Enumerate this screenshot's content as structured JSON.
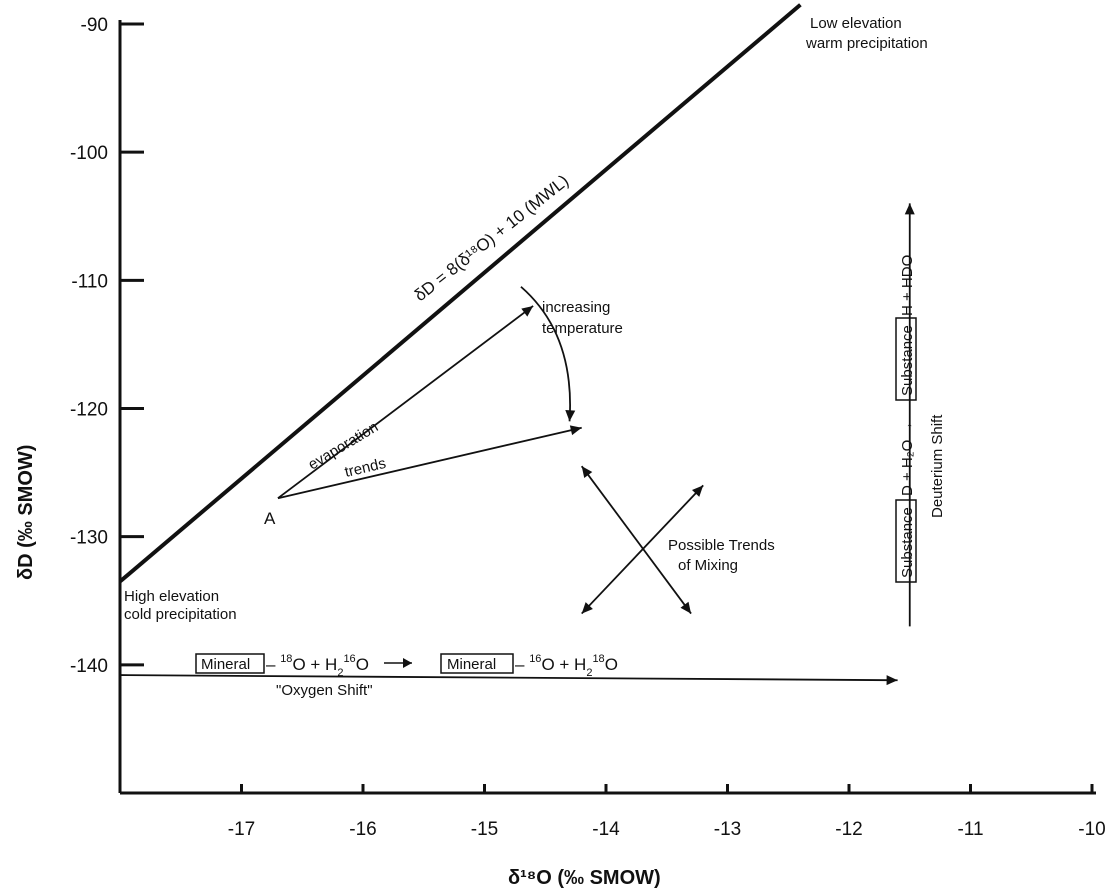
{
  "chart_data": {
    "type": "line",
    "xlabel": "δ¹⁸O (‰ SMOW)",
    "ylabel": "δD (‰ SMOW)",
    "xlim": [
      -18,
      -10
    ],
    "ylim": [
      -150,
      -90
    ],
    "x_ticks": [
      "-17",
      "-16",
      "-15",
      "-14",
      "-13",
      "-12",
      "-11",
      "-10"
    ],
    "y_ticks": [
      "-90",
      "-100",
      "-110",
      "-120",
      "-130",
      "-140"
    ],
    "x_tick_values": [
      -17,
      -16,
      -15,
      -14,
      -13,
      -12,
      -11,
      -10
    ],
    "y_tick_values": [
      -90,
      -100,
      -110,
      -120,
      -130,
      -140
    ],
    "series": [
      {
        "name": "δD = 8(δ¹⁸O) + 10 (MWL)",
        "x": [
          -18,
          -12.4
        ],
        "y": [
          -133.5,
          -88.5
        ]
      }
    ],
    "arrows": {
      "evaporation_upper": {
        "from": [
          -16.7,
          -127
        ],
        "to": [
          -14.6,
          -112
        ]
      },
      "evaporation_lower": {
        "from": [
          -16.7,
          -127
        ],
        "to": [
          -14.2,
          -121.5
        ]
      },
      "temperature_curve": {
        "from": [
          -14.7,
          -110.5
        ],
        "to": [
          -14.3,
          -121
        ]
      },
      "mixing_1": {
        "from": [
          -14.2,
          -124.5
        ],
        "to": [
          -13.3,
          -136
        ]
      },
      "mixing_2": {
        "from": [
          -13.2,
          -126
        ],
        "to": [
          -14.2,
          -136
        ]
      },
      "oxygen_shift": {
        "from": [
          -18,
          -140.8
        ],
        "to": [
          -11.6,
          -141.2
        ]
      },
      "deuterium_shift": {
        "from": [
          -11.5,
          -137
        ],
        "to": [
          -11.5,
          -104
        ]
      }
    },
    "annotations": {
      "mwl_label": "δD = 8(δ¹⁸O) + 10 (MWL)",
      "low_elev_1": "Low elevation",
      "low_elev_2": "warm precipitation",
      "high_elev_1": "High elevation",
      "high_elev_2": "cold precipitation",
      "increasing": "increasing",
      "temperature": "temperature",
      "evaporation": "evaporation",
      "trends": "trends",
      "point_a": "A",
      "possible_trends": "Possible Trends",
      "of_mixing": "of Mixing",
      "mineral": "Mineral",
      "oxygen_shift": "\"Oxygen Shift\"",
      "substance": "Substance",
      "deuterium_shift": "Deuterium Shift",
      "deut_reaction_mid": "D + H₂O →",
      "deut_reaction_end": "H + HDO"
    }
  }
}
